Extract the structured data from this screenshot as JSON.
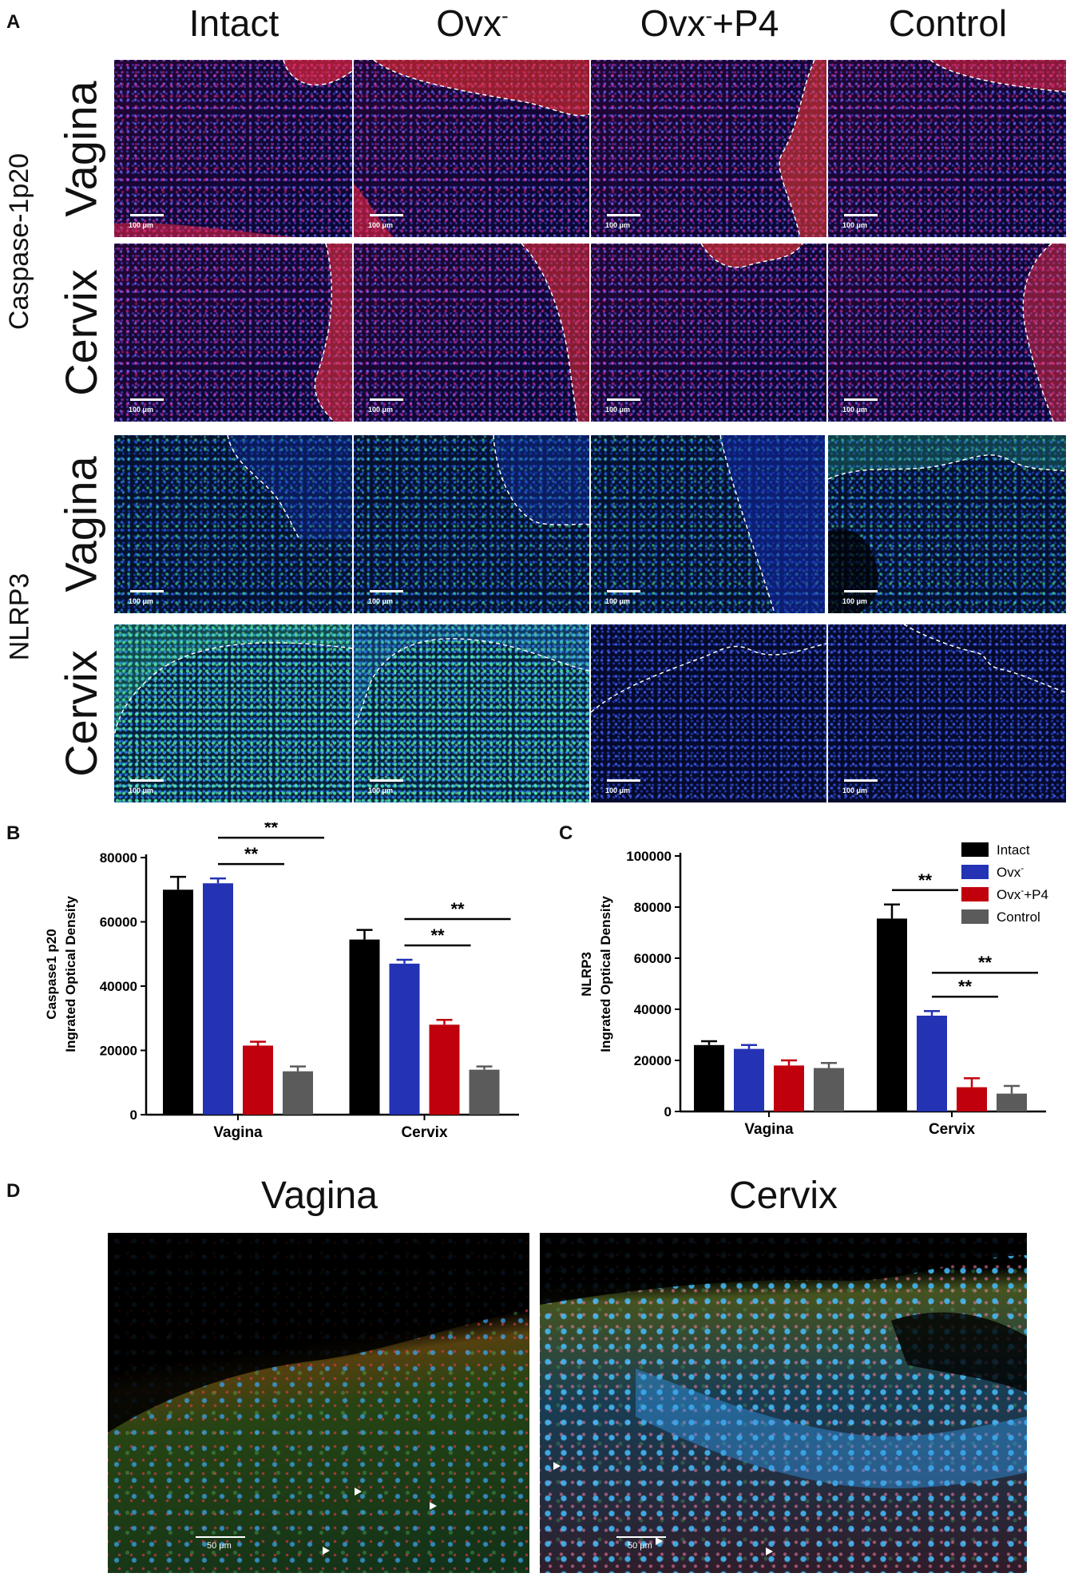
{
  "panel_letters": {
    "a": "A",
    "b": "B",
    "c": "C",
    "d": "D"
  },
  "panel_a": {
    "columns": [
      {
        "base": "Intact",
        "sup": "",
        "suffix": ""
      },
      {
        "base": "Ovx",
        "sup": "-",
        "suffix": ""
      },
      {
        "base": "Ovx",
        "sup": "-",
        "suffix": "+P4"
      },
      {
        "base": "Control",
        "sup": "",
        "suffix": ""
      }
    ],
    "markers": {
      "caspase": "Caspase-1p20",
      "nlrp3": "NLRP3"
    },
    "tissues": {
      "vagina": "Vagina",
      "cervix": "Cervix"
    },
    "scale_label": "100 μm"
  },
  "chart_data": [
    {
      "type": "bar",
      "panel": "B",
      "ylabel_line1": "Caspase1 p20",
      "ylabel_line2": "Ingrated Optical Density",
      "ylim": [
        0,
        80000
      ],
      "yticks": [
        0,
        20000,
        40000,
        60000,
        80000
      ],
      "categories": [
        "Vagina",
        "Cervix"
      ],
      "series": [
        {
          "name": "Intact",
          "color": "#000000",
          "values": [
            70000,
            54500
          ],
          "errors": [
            4000,
            3000
          ]
        },
        {
          "name": "Ovx-",
          "color": "#2432b4",
          "values": [
            72000,
            47000
          ],
          "errors": [
            1500,
            1200
          ]
        },
        {
          "name": "Ovx-+P4",
          "color": "#c0000c",
          "values": [
            21500,
            28000
          ],
          "errors": [
            1200,
            1500
          ]
        },
        {
          "name": "Control",
          "color": "#5b5b5b",
          "values": [
            13500,
            14000
          ],
          "errors": [
            1500,
            1000
          ]
        }
      ],
      "significance": [
        {
          "category": 0,
          "from": 1,
          "to": 2,
          "label": "**",
          "level": 0
        },
        {
          "category": 0,
          "from": 1,
          "to": 3,
          "label": "**",
          "level": 1
        },
        {
          "category": 1,
          "from": 1,
          "to": 2,
          "label": "**",
          "level": 0
        },
        {
          "category": 1,
          "from": 1,
          "to": 3,
          "label": "**",
          "level": 1
        }
      ]
    },
    {
      "type": "bar",
      "panel": "C",
      "ylabel_line1": "NLRP3",
      "ylabel_line2": "Ingrated Optical Density",
      "ylim": [
        0,
        100000
      ],
      "yticks": [
        0,
        20000,
        40000,
        60000,
        80000,
        100000
      ],
      "categories": [
        "Vagina",
        "Cervix"
      ],
      "series": [
        {
          "name": "Intact",
          "color": "#000000",
          "values": [
            26000,
            75500
          ],
          "errors": [
            1500,
            5500
          ]
        },
        {
          "name": "Ovx-",
          "color": "#2432b4",
          "values": [
            24500,
            37500
          ],
          "errors": [
            1500,
            1800
          ]
        },
        {
          "name": "Ovx-+P4",
          "color": "#c0000c",
          "values": [
            18000,
            9500
          ],
          "errors": [
            2000,
            3500
          ]
        },
        {
          "name": "Control",
          "color": "#5b5b5b",
          "values": [
            17000,
            7000
          ],
          "errors": [
            2000,
            3000
          ]
        }
      ],
      "significance": [
        {
          "category": 1,
          "from": 0,
          "to": 1,
          "label": "**",
          "level": 0
        },
        {
          "category": 1,
          "from": 1,
          "to": 2,
          "label": "**",
          "level": 0
        },
        {
          "category": 1,
          "from": 1,
          "to": 3,
          "label": "**",
          "level": 1
        }
      ],
      "legend": {
        "placement": "top-right",
        "items": [
          {
            "base": "Intact",
            "sup": "",
            "suffix": "",
            "color": "#000000"
          },
          {
            "base": "Ovx",
            "sup": "-",
            "suffix": "",
            "color": "#2432b4"
          },
          {
            "base": "Ovx",
            "sup": "-",
            "suffix": "+P4",
            "color": "#c0000c"
          },
          {
            "base": "Control",
            "sup": "",
            "suffix": "",
            "color": "#5b5b5b"
          }
        ]
      }
    }
  ],
  "panel_d": {
    "titles": {
      "vagina": "Vagina",
      "cervix": "Cervix"
    },
    "scale_label": "50 μm"
  }
}
